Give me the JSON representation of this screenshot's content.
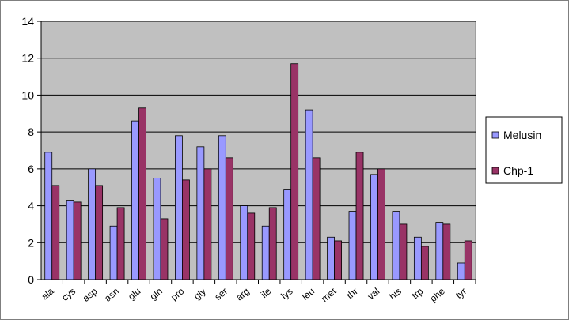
{
  "chart_data": {
    "type": "bar",
    "categories": [
      "ala",
      "cys",
      "asp",
      "asn",
      "glu",
      "gln",
      "pro",
      "gly",
      "ser",
      "arg",
      "ile",
      "lys",
      "leu",
      "met",
      "thr",
      "val",
      "his",
      "trp",
      "phe",
      "tyr"
    ],
    "series": [
      {
        "name": "Melusin",
        "color": "#9999ff",
        "values": [
          6.9,
          4.3,
          6.0,
          2.9,
          8.6,
          5.5,
          7.8,
          7.2,
          7.8,
          4.0,
          2.9,
          4.9,
          9.2,
          2.3,
          3.7,
          5.7,
          3.7,
          2.3,
          3.1,
          0.9
        ]
      },
      {
        "name": "Chp-1",
        "color": "#993366",
        "values": [
          5.1,
          4.2,
          5.1,
          3.9,
          9.3,
          3.3,
          5.4,
          6.0,
          6.6,
          3.6,
          3.9,
          11.7,
          6.6,
          2.1,
          6.9,
          6.0,
          3.0,
          1.8,
          3.0,
          2.1
        ]
      }
    ],
    "yticks": [
      0,
      2,
      4,
      6,
      8,
      10,
      12,
      14
    ],
    "ylim": [
      0,
      14
    ],
    "grid": true,
    "plot_background": "#c0c0c0",
    "legend_position": "right"
  }
}
